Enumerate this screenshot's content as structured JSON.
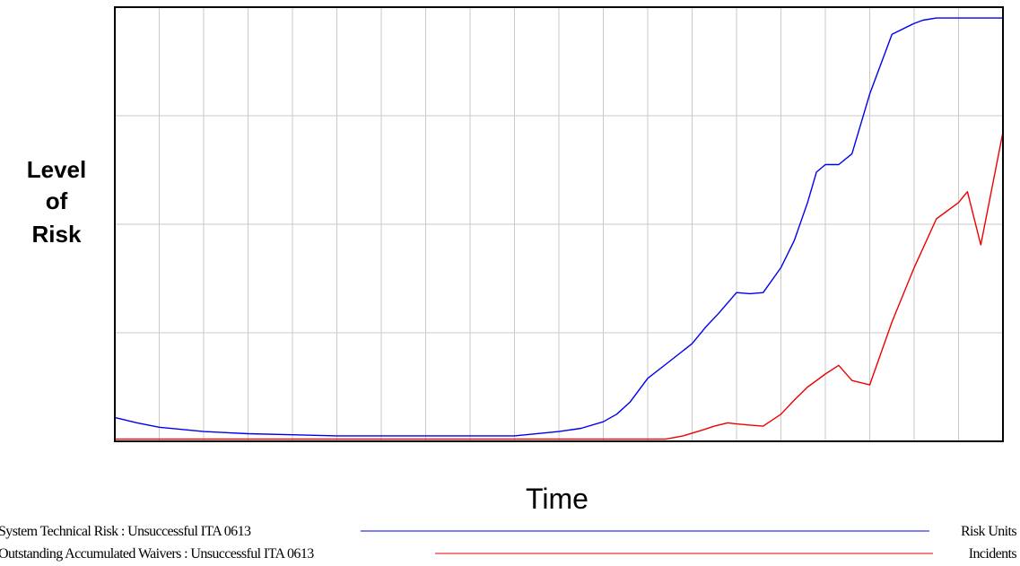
{
  "chart_data": {
    "type": "line",
    "title": "",
    "xlabel": "Time",
    "ylabel_lines": [
      "Level",
      "of",
      "Risk"
    ],
    "x_range": [
      0,
      20
    ],
    "y_range": [
      0,
      4
    ],
    "grid": true,
    "x_gridlines": 20,
    "y_gridlines": 4,
    "axis_ticks_labeled": false,
    "series": [
      {
        "name": "System Technical Risk : Unsuccessful ITA 0613",
        "units": "Risk Units",
        "color": "#0000ee",
        "x": [
          0,
          0.5,
          1,
          2,
          3,
          4,
          5,
          6,
          7,
          8,
          9,
          10,
          10.5,
          11,
          11.3,
          11.6,
          12,
          12.5,
          13,
          13.3,
          13.6,
          14,
          14.3,
          14.6,
          15,
          15.3,
          15.6,
          15.8,
          16,
          16.3,
          16.6,
          17,
          17.5,
          18,
          18.2,
          18.5,
          19,
          19.5,
          20
        ],
        "y": [
          0.22,
          0.17,
          0.13,
          0.09,
          0.07,
          0.06,
          0.05,
          0.05,
          0.05,
          0.05,
          0.05,
          0.09,
          0.12,
          0.18,
          0.25,
          0.36,
          0.58,
          0.74,
          0.9,
          1.05,
          1.18,
          1.37,
          1.36,
          1.37,
          1.6,
          1.85,
          2.2,
          2.48,
          2.55,
          2.55,
          2.65,
          3.2,
          3.75,
          3.85,
          3.88,
          3.9,
          3.9,
          3.9,
          3.9
        ]
      },
      {
        "name": "Outstanding Accumulated Waivers : Unsuccessful ITA 0613",
        "units": "Incidents",
        "color": "#ee0000",
        "x": [
          0,
          5,
          10,
          12.4,
          12.8,
          13.2,
          13.5,
          13.8,
          14,
          14.3,
          14.6,
          15,
          15.3,
          15.6,
          16,
          16.3,
          16.6,
          17,
          17.5,
          18,
          18.5,
          19,
          19.2,
          19.5,
          20
        ],
        "y": [
          0.02,
          0.02,
          0.02,
          0.02,
          0.05,
          0.1,
          0.14,
          0.17,
          0.16,
          0.15,
          0.14,
          0.25,
          0.38,
          0.5,
          0.62,
          0.7,
          0.56,
          0.52,
          1.1,
          1.6,
          2.05,
          2.2,
          2.3,
          1.81,
          2.85
        ]
      }
    ]
  }
}
